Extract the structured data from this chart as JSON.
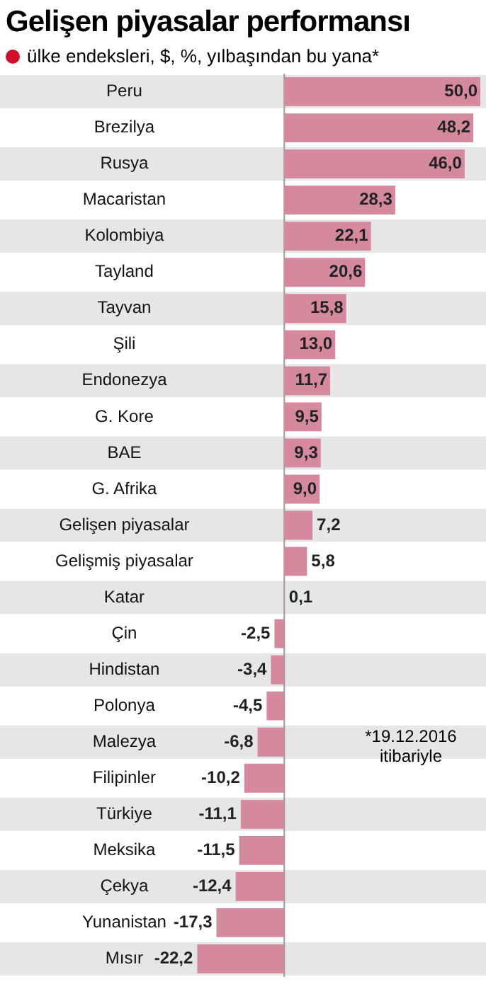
{
  "chart_data": {
    "type": "bar",
    "orientation": "horizontal",
    "title": "Gelişen piyasalar performansı",
    "subtitle": "ülke endeksleri, $, %, yılbaşından bu yana*",
    "categories": [
      "Peru",
      "Brezilya",
      "Rusya",
      "Macaristan",
      "Kolombiya",
      "Tayland",
      "Tayvan",
      "Şili",
      "Endonezya",
      "G. Kore",
      "BAE",
      "G. Afrika",
      "Gelişen piyasalar",
      "Gelişmiş piyasalar",
      "Katar",
      "Çin",
      "Hindistan",
      "Polonya",
      "Malezya",
      "Filipinler",
      "Türkiye",
      "Meksika",
      "Çekya",
      "Yunanistan",
      "Mısır"
    ],
    "values": [
      50.0,
      48.2,
      46.0,
      28.3,
      22.1,
      20.6,
      15.8,
      13.0,
      11.7,
      9.5,
      9.3,
      9.0,
      7.2,
      5.8,
      0.1,
      -2.5,
      -3.4,
      -4.5,
      -6.8,
      -10.2,
      -11.1,
      -11.5,
      -12.4,
      -17.3,
      -22.2
    ],
    "value_labels": [
      "50,0",
      "48,2",
      "46,0",
      "28,3",
      "22,1",
      "20,6",
      "15,8",
      "13,0",
      "11,7",
      "9,5",
      "9,3",
      "9,0",
      "7,2",
      "5,8",
      "0,1",
      "-2,5",
      "-3,4",
      "-4,5",
      "-6,8",
      "-10,2",
      "-11,1",
      "-11,5",
      "-12,4",
      "-17,3",
      "-22,2"
    ],
    "color": "#d4899f",
    "legend": false,
    "tick_labels": "y",
    "annotations": [
      "*19.12.2016 itibariyle"
    ]
  }
}
